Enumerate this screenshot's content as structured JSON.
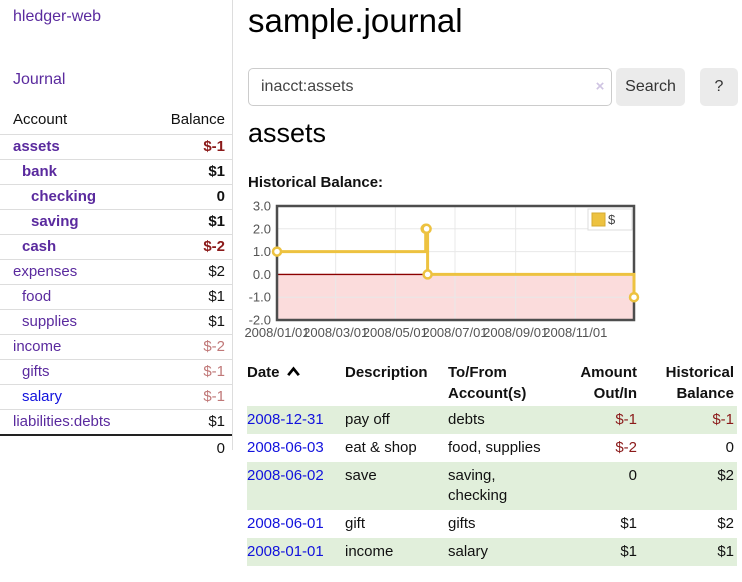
{
  "app": {
    "brand": "hledger-web"
  },
  "sidebar": {
    "journal_link": "Journal",
    "accounts": {
      "headers": {
        "account": "Account",
        "balance": "Balance"
      },
      "rows": [
        {
          "name": "assets",
          "balance": "$-1"
        },
        {
          "name": "bank",
          "balance": "$1"
        },
        {
          "name": "checking",
          "balance": "0"
        },
        {
          "name": "saving",
          "balance": "$1"
        },
        {
          "name": "cash",
          "balance": "$-2"
        },
        {
          "name": "expenses",
          "balance": "$2"
        },
        {
          "name": "food",
          "balance": "$1"
        },
        {
          "name": "supplies",
          "balance": "$1"
        },
        {
          "name": "income",
          "balance": "$-2"
        },
        {
          "name": "gifts",
          "balance": "$-1"
        },
        {
          "name": "salary",
          "balance": "$-1"
        },
        {
          "name": "liabilities:debts",
          "balance": "$1"
        }
      ],
      "total": "0"
    }
  },
  "header": {
    "title": "sample.journal"
  },
  "search": {
    "value": "inacct:assets",
    "clear_icon": "×",
    "search_button": "Search",
    "help_button": "?"
  },
  "register": {
    "account_heading": "assets",
    "chart_heading": "Historical Balance:",
    "headers": {
      "date": "Date",
      "description": "Description",
      "tofrom_line1": "To/From",
      "tofrom_line2": "Account(s)",
      "amount_line1": "Amount",
      "amount_line2": "Out/In",
      "hist_line1": "Historical",
      "hist_line2": "Balance"
    },
    "rows": [
      {
        "date": "2008-12-31",
        "description": "pay off",
        "accounts": "debts",
        "amount": "$-1",
        "balance": "$-1"
      },
      {
        "date": "2008-06-03",
        "description": "eat & shop",
        "accounts": "food, supplies",
        "amount": "$-2",
        "balance": "0"
      },
      {
        "date": "2008-06-02",
        "description": "save",
        "accounts": "saving, checking",
        "amount": "0",
        "balance": "$2"
      },
      {
        "date": "2008-06-01",
        "description": "gift",
        "accounts": "gifts",
        "amount": "$1",
        "balance": "$2"
      },
      {
        "date": "2008-01-01",
        "description": "income",
        "accounts": "salary",
        "amount": "$1",
        "balance": "$1"
      }
    ]
  },
  "colors": {
    "link_purple": "#5a2a9e",
    "link_blue": "#1212dd",
    "negative_strong": "#8b1a1a",
    "negative_soft": "#c07878",
    "row_stripe_green": "#e1efdb",
    "series_yellow": "#edc240"
  },
  "chart_data": {
    "type": "line",
    "steps": true,
    "title": "Historical Balance",
    "series": [
      {
        "name": "$",
        "color": "#edc240",
        "points": [
          [
            "2008-01-01",
            1
          ],
          [
            "2008-06-01",
            2
          ],
          [
            "2008-06-02",
            2
          ],
          [
            "2008-06-03",
            0
          ],
          [
            "2008-12-31",
            -1
          ]
        ]
      }
    ],
    "xlim": [
      "2008-01-01",
      "2008-12-31"
    ],
    "ylim": [
      -2,
      3
    ],
    "x_ticks": [
      "2008/01/01",
      "2008/03/01",
      "2008/05/01",
      "2008/07/01",
      "2008/09/01",
      "2008/11/01"
    ],
    "y_ticks": [
      "3.0",
      "2.0",
      "1.0",
      "0.0",
      "-1.0",
      "-2.0"
    ],
    "grid": true,
    "negative_region_color": "#fbdcdc",
    "zero_line_color": "#8b0000",
    "legend": {
      "label": "$",
      "position": "top-right"
    }
  }
}
